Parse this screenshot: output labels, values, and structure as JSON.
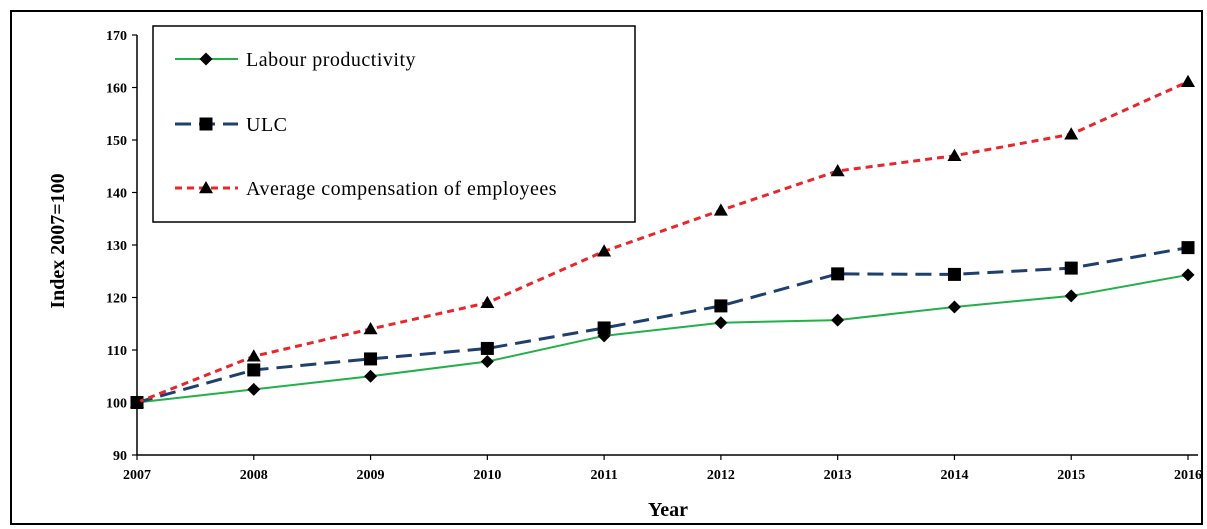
{
  "chart_data": {
    "type": "line",
    "xlabel": "Year",
    "ylabel": "Index 2007=100",
    "x": [
      2007,
      2008,
      2009,
      2010,
      2011,
      2012,
      2013,
      2014,
      2015,
      2016
    ],
    "ylim": [
      90,
      170
    ],
    "yticks": [
      90,
      100,
      110,
      120,
      130,
      140,
      150,
      160,
      170
    ],
    "grid": false,
    "legend_position": "top-left",
    "series": [
      {
        "name": "Labour productivity",
        "values": [
          100,
          102.5,
          105,
          107.8,
          112.7,
          115.2,
          115.7,
          118.2,
          120.3,
          124.3
        ],
        "color": "#22b04a",
        "line_style": "solid",
        "marker": "diamond"
      },
      {
        "name": "ULC",
        "values": [
          100,
          106.2,
          108.3,
          110.3,
          114.2,
          118.4,
          124.5,
          124.4,
          125.6,
          129.5
        ],
        "color": "#1f3f6e",
        "line_style": "dashed",
        "marker": "square"
      },
      {
        "name": "Average compensation of employees",
        "values": [
          100,
          108.8,
          114,
          119,
          128.8,
          136.6,
          144.1,
          147,
          151.1,
          161.1
        ],
        "color": "#e8262b",
        "line_style": "dotted",
        "marker": "triangle"
      }
    ]
  }
}
